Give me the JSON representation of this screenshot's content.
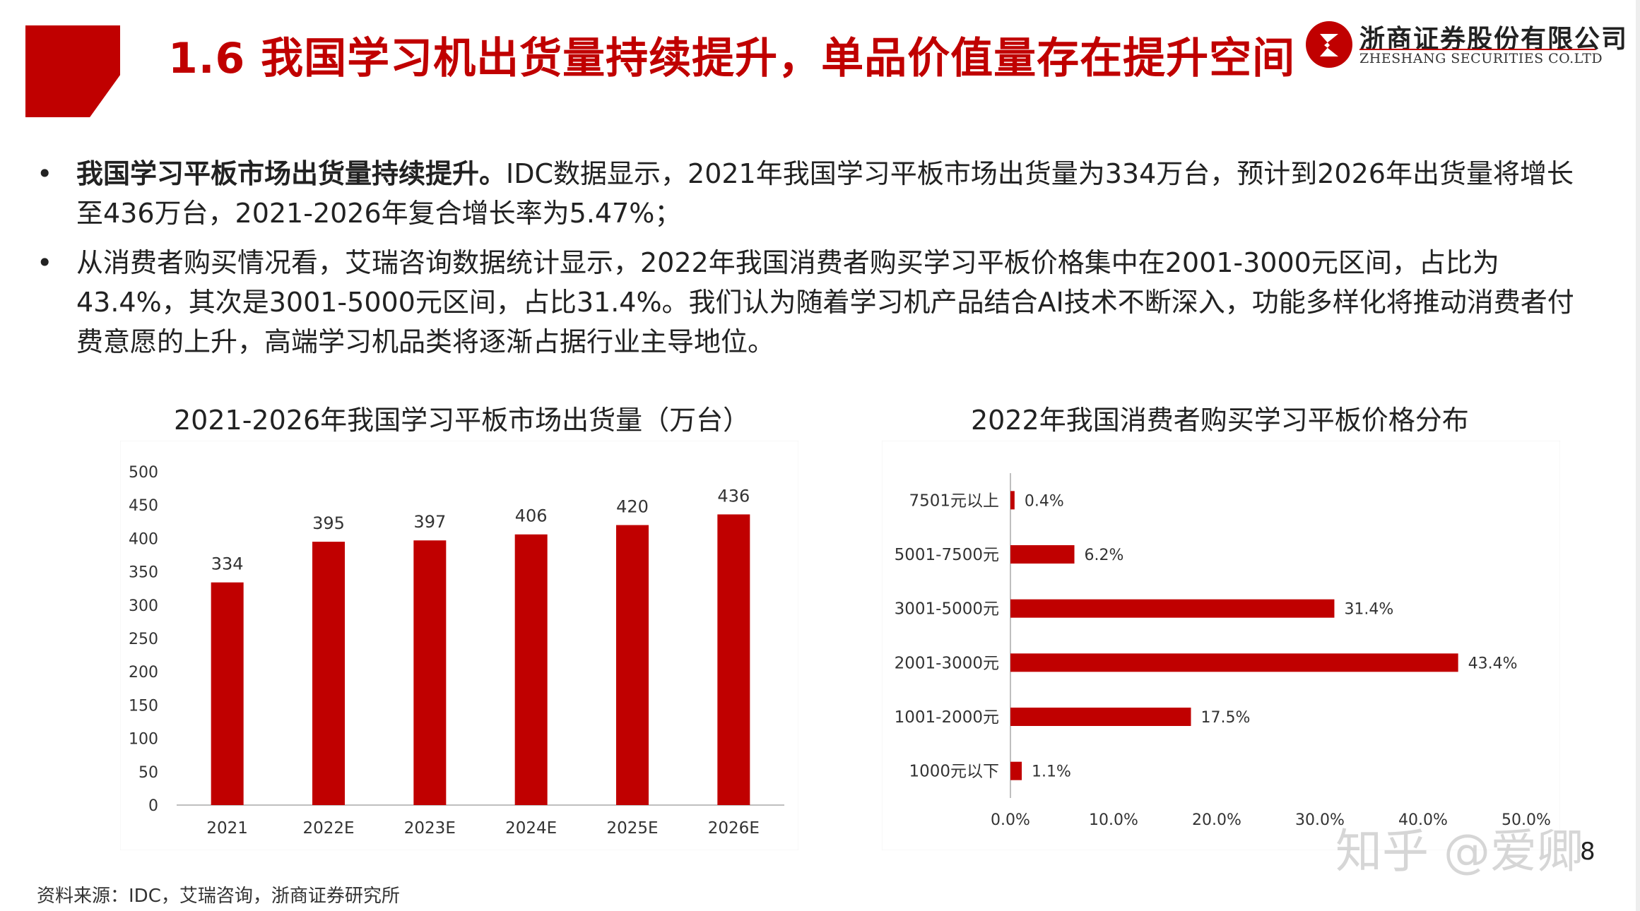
{
  "header": {
    "title": "1.6 我国学习机出货量持续提升，单品价值量存在提升空间",
    "logo_cn": "浙商证券股份有限公司",
    "logo_en": "ZHESHANG SECURITIES CO.LTD"
  },
  "bullets": [
    {
      "marker": "•",
      "lead": "我国学习平板市场出货量持续提升。",
      "text": "IDC数据显示，2021年我国学习平板市场出货量为334万台，预计到2026年出货量将增长至436万台，2021-2026年复合增长率为5.47%；"
    },
    {
      "marker": "•",
      "lead": "",
      "text": "从消费者购买情况看，艾瑞咨询数据统计显示，2022年我国消费者购买学习平板价格集中在2001-3000元区间，占比为43.4%，其次是3001-5000元区间，占比31.4%。我们认为随着学习机产品结合AI技术不断深入，功能多样化将推动消费者付费意愿的上升，高端学习机品类将逐渐占据行业主导地位。"
    }
  ],
  "chart_data": [
    {
      "type": "bar",
      "title": "2021-2026年我国学习平板市场出货量（万台）",
      "categories": [
        "2021",
        "2022E",
        "2023E",
        "2024E",
        "2025E",
        "2026E"
      ],
      "values": [
        334,
        395,
        397,
        406,
        420,
        436
      ],
      "ylim": [
        0,
        500
      ],
      "yticks": [
        0,
        50,
        100,
        150,
        200,
        250,
        300,
        350,
        400,
        450,
        500
      ],
      "xlabel": "",
      "ylabel": "",
      "grid": false,
      "color": "#c00000"
    },
    {
      "type": "bar",
      "orientation": "horizontal",
      "title": "2022年我国消费者购买学习平板价格分布",
      "categories": [
        "7501元以上",
        "5001-7500元",
        "3001-5000元",
        "2001-3000元",
        "1001-2000元",
        "1000元以下"
      ],
      "values": [
        0.4,
        6.2,
        31.4,
        43.4,
        17.5,
        1.1
      ],
      "value_labels": [
        "0.4%",
        "6.2%",
        "31.4%",
        "43.4%",
        "17.5%",
        "1.1%"
      ],
      "xlim": [
        0,
        50
      ],
      "xticks": [
        "0.0%",
        "10.0%",
        "20.0%",
        "30.0%",
        "40.0%",
        "50.0%"
      ],
      "xlabel": "",
      "ylabel": "",
      "grid": false,
      "color": "#c00000"
    }
  ],
  "source": "资料来源：IDC，艾瑞咨询，浙商证券研究所",
  "page_number": "8",
  "watermark": "知乎 @爱卿",
  "colors": {
    "accent": "#c00000"
  }
}
